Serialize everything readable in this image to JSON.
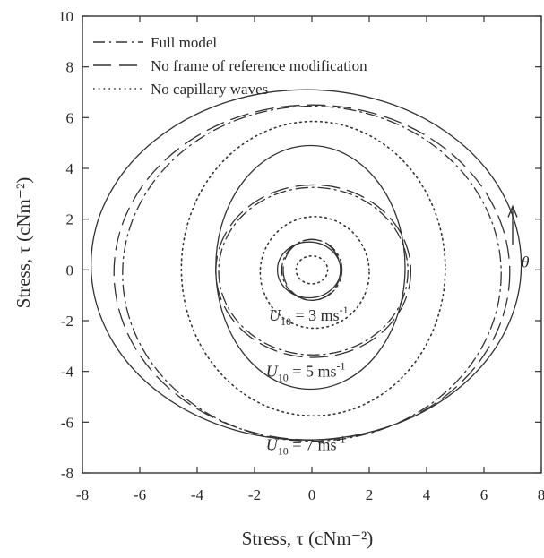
{
  "chart_data": {
    "type": "line",
    "title": "",
    "xlabel": "Stress, τ (cNm⁻²)",
    "ylabel": "Stress, τ (cNm⁻²)",
    "xlim": [
      -8,
      8
    ],
    "ylim": [
      -8,
      10
    ],
    "x_ticks": [
      "-8",
      "-6",
      "-4",
      "-2",
      "0",
      "2",
      "4",
      "6",
      "8"
    ],
    "y_ticks": [
      "-8",
      "-6",
      "-4",
      "-2",
      "0",
      "2",
      "4",
      "6",
      "8",
      "10"
    ],
    "grid": false,
    "legend_position": "top-left",
    "series": [
      {
        "name": "Full model",
        "line_style": "dash-dot",
        "curves": [
          {
            "wind": "U10 = 3",
            "cx": 0.0,
            "cy": 0.0,
            "rx": 1.05,
            "ry": 1.2
          },
          {
            "wind": "U10 = 5",
            "cx": 0.05,
            "cy": -0.05,
            "rx": 3.3,
            "ry": 3.3
          },
          {
            "wind": "U10 = 7",
            "cx": 0.0,
            "cy": -0.15,
            "rx": 6.6,
            "ry": 6.6
          }
        ]
      },
      {
        "name": "No frame of reference modification",
        "line_style": "long-dash",
        "curves": [
          {
            "wind": "U10 = 3",
            "cx": 0.0,
            "cy": 0.0,
            "rx": 1.0,
            "ry": 1.2
          },
          {
            "wind": "U10 = 5",
            "cx": 0.05,
            "cy": -0.05,
            "rx": 3.4,
            "ry": 3.4
          },
          {
            "wind": "U10 = 7",
            "cx": 0.0,
            "cy": -0.1,
            "rx": 6.9,
            "ry": 6.6
          }
        ]
      },
      {
        "name": "No capillary waves",
        "line_style": "dotted",
        "curves": [
          {
            "wind": "U10 = 3",
            "cx": 0.0,
            "cy": 0.0,
            "rx": 0.55,
            "ry": 0.55
          },
          {
            "wind": "U10 = 5",
            "cx": 0.1,
            "cy": -0.1,
            "rx": 1.9,
            "ry": 2.2
          },
          {
            "wind": "U10 = 7",
            "cx": 0.05,
            "cy": 0.05,
            "rx": 4.6,
            "ry": 5.8
          }
        ]
      },
      {
        "name": "",
        "line_style": "solid",
        "curves": [
          {
            "wind": "U10 = 3",
            "cx": -0.1,
            "cy": 0.0,
            "rx": 1.1,
            "ry": 1.1
          },
          {
            "wind": "U10 = 5",
            "cx": -0.05,
            "cy": 0.1,
            "rx": 3.3,
            "ry": 4.8
          },
          {
            "wind": "U10 = 7",
            "cx": -0.2,
            "cy": 0.2,
            "rx": 7.5,
            "ry": 6.9
          }
        ]
      }
    ],
    "annotations": {
      "u3": {
        "base": "U",
        "sub": "10",
        "value": " = 3 ms",
        "sup": "-1",
        "x": -1.5,
        "y": -2.0
      },
      "u5": {
        "base": "U",
        "sub": "10",
        "value": " = 5 ms",
        "sup": "-1",
        "x": -1.6,
        "y": -4.2
      },
      "u7": {
        "base": "U",
        "sub": "10",
        "value": " = 7 ms",
        "sup": "-1",
        "x": -1.6,
        "y": -7.1
      },
      "theta": {
        "text": "θ",
        "x": 7.3,
        "y": 0.1
      },
      "arrow": {
        "x": 7.0,
        "y_from": 1.0,
        "y_to": 2.5
      }
    }
  }
}
